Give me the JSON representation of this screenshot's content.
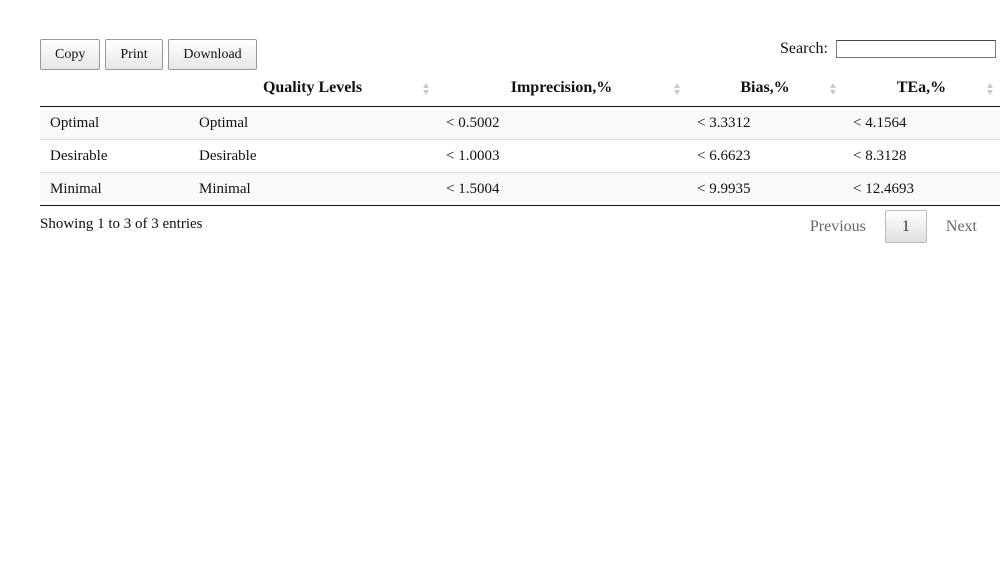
{
  "toolbar": {
    "copy_label": "Copy",
    "print_label": "Print",
    "download_label": "Download"
  },
  "search": {
    "label": "Search:",
    "value": ""
  },
  "table": {
    "columns": [
      "",
      "Quality Levels",
      "Imprecision,%",
      "Bias,%",
      "TEa,%"
    ],
    "rows": [
      [
        "Optimal",
        "Optimal",
        "< 0.5002",
        "< 3.3312",
        "< 4.1564"
      ],
      [
        "Desirable",
        "Desirable",
        "< 1.0003",
        "< 6.6623",
        "< 8.3128"
      ],
      [
        "Minimal",
        "Minimal",
        "< 1.5004",
        "< 9.9935",
        "< 12.4693"
      ]
    ]
  },
  "footer": {
    "info": "Showing 1 to 3 of 3 entries",
    "previous_label": "Previous",
    "page": "1",
    "next_label": "Next"
  },
  "icons": {
    "sort": "sort-both-icon"
  },
  "colors": {
    "sort_icon": "#c9c9c9",
    "row_stripe": "#f9f9f9"
  }
}
